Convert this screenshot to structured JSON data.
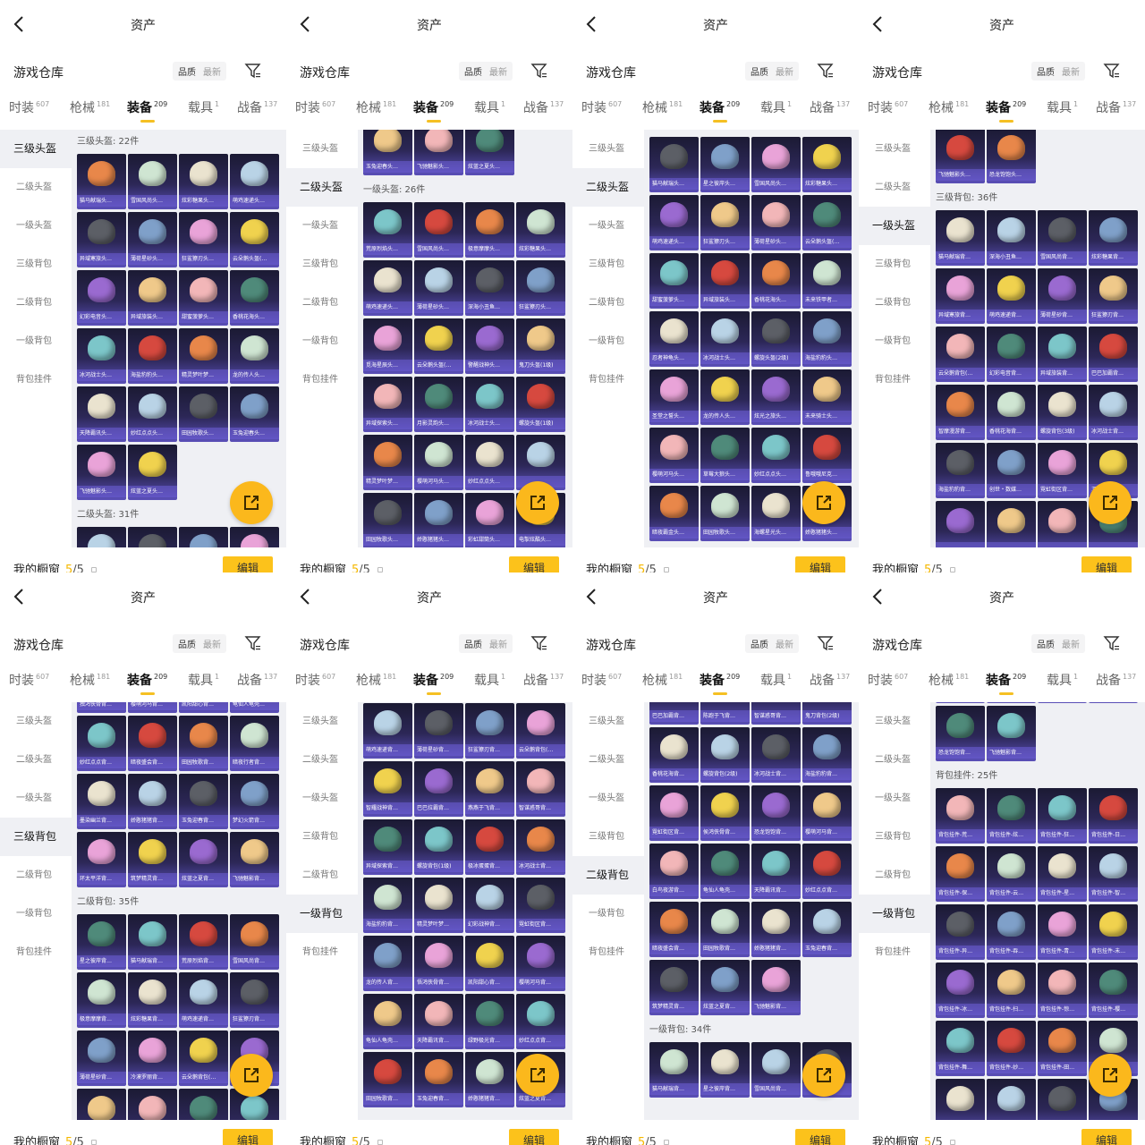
{
  "header": {
    "title": "资产",
    "back_icon": "chevron-left-icon"
  },
  "toolbar": {
    "warehouse_title": "游戏仓库",
    "sort_quality": "品质",
    "sort_newest": "最新",
    "filter_icon": "filter-icon"
  },
  "tabs": [
    {
      "label": "时装",
      "count": "607"
    },
    {
      "label": "枪械",
      "count": "181"
    },
    {
      "label": "装备",
      "count": "209",
      "active": true
    },
    {
      "label": "载具",
      "count": "1"
    },
    {
      "label": "战备",
      "count": "137"
    }
  ],
  "sidebar": [
    "三级头盔",
    "二级头盔",
    "一级头盔",
    "三级背包",
    "二级背包",
    "一级背包",
    "背包挂件"
  ],
  "footer": {
    "label": "我的橱窗",
    "used": "5",
    "total": "/5",
    "edit_label": "编辑",
    "lock_icon": "lock-icon"
  },
  "fab": {
    "icon": "share-icon"
  },
  "colors": {
    "accent": "#fcc21b",
    "tile_top": "#1b1a33",
    "tile_bottom": "#5a4fb8",
    "content_bg": "#eff0f4"
  },
  "panels": [
    {
      "selected": 0,
      "sections": [
        {
          "title": "三级头盔: 22件",
          "items": [
            "猫马献瑞头…",
            "雪国风尚头…",
            "炫彩糖果头…",
            "萌鸡速递头…",
            "异域寒旅头…",
            "薄荷星砂头…",
            "狂鲨獠刃头…",
            "云朵鹅头盔(…",
            "幻彩电音头…",
            "异域旅装头…",
            "甜蜜菠萝头…",
            "香桃花海头…",
            "冰河战士头…",
            "海盐豹豹头…",
            "精灵梦叶梦…",
            "龙的传人头…",
            "天降霸讯头…",
            "妙红点点头…",
            "田园牧歌头…",
            "玉兔迎春头…",
            "飞驰魅影头…",
            "炫蓝之夏头…"
          ]
        },
        {
          "title": "二级头盔: 31件",
          "items": [
            "",
            "",
            "",
            ""
          ]
        }
      ]
    },
    {
      "selected": 1,
      "sections": [
        {
          "title": null,
          "items": [
            "玉兔迎春头…",
            "飞驰魅影头…",
            "炫蓝之夏头…"
          ]
        },
        {
          "title": "一级头盔: 26件",
          "items": [
            "荒原烈焰头…",
            "雪国风尚头…",
            "极意摩摩头…",
            "炫彩糖果头…",
            "萌鸡速递头…",
            "薄荷星砂头…",
            "深海小丑鱼…",
            "狂鲨獠刃头…",
            "觅海星辰头…",
            "云朵鹅头盔(…",
            "警醒战神头…",
            "鬼刀头盔(1级)",
            "异域探索头…",
            "月影灵韵头…",
            "冰河战士头…",
            "螺旋头盔(1级)",
            "精灵梦叶梦…",
            "樱萌河马头…",
            "妙红点点头…",
            "",
            "田园牧歌头…",
            "娇憨猪猪头…",
            "彩虹甜筒头…",
            "电掣炫酷头…"
          ]
        }
      ]
    },
    {
      "selected": 1,
      "sections": [
        {
          "title": null,
          "items": [
            "猫马献瑞头…",
            "星之彼岸头…",
            "雪国风尚头…",
            "炫彩糖果头…",
            "萌鸡速递头…",
            "狂鲨獠刃头…",
            "薄荷星砂头…",
            "云朵鹅头盔(…",
            "甜蜜菠萝头…",
            "异域旅装头…",
            "香桃花海头…",
            "未来铁甲者…",
            "忍者神龟头…",
            "冰河战士头…",
            "螺旋头盔(2级)",
            "海盐豹豹头…",
            "圣堂之誓头…",
            "龙的传人头…",
            "炫光之旅头…",
            "未来骑士头…",
            "樱萌河马头…",
            "草莓大狼头…",
            "妙红点点头…",
            "鲁哦哦尼克…",
            "暗夜霸金头…",
            "田园牧歌头…",
            "海螺星光头…",
            "娇憨猪猪头…"
          ]
        }
      ]
    },
    {
      "selected": 2,
      "sections": [
        {
          "title": null,
          "items": [
            "飞驰魅影头…",
            "恐龙饱饱头…"
          ]
        },
        {
          "title": "三级背包: 36件",
          "items": [
            "猫马献瑞背…",
            "深海小丑鱼…",
            "雪国风尚背…",
            "炫彩糖果背…",
            "异域寒旅背…",
            "萌鸡速递背…",
            "薄荷星砂背…",
            "狂鲨獠刃背…",
            "云朵鹅背包(…",
            "幻彩电音背…",
            "异域旅装背…",
            "巴巴加霸背…",
            "智摩漫游背…",
            "香桃花海背…",
            "螺旋背包(3级)",
            "冰河战士背…",
            "海盐豹豹背…",
            "创世・数媒…",
            "霓虹街区背…",
            "玉兔迎春背…",
            "",
            "",
            "",
            ""
          ]
        }
      ]
    },
    {
      "selected": 3,
      "sections": [
        {
          "title": null,
          "items": [
            "独鸿侠骨背…",
            "樱萌河马背…",
            "凯阳甜心背…",
            "龟仙人龟壳…",
            "妙红点点背…",
            "暗夜盛会背…",
            "田园牧歌背…",
            "暗夜行者背…",
            "墨染幽兰背…",
            "娇憨猪猪背…",
            "玉兔迎春背…",
            "梦幻火箭背…",
            "环太平洋背…",
            "筑梦精灵背…",
            "炫蓝之夏背…",
            "飞驰魅影背…"
          ]
        },
        {
          "title": "二级背包: 35件",
          "items": [
            "星之彼岸背…",
            "猫马献瑞背…",
            "荒原烈焰背…",
            "雪国风尚背…",
            "极意摩摩背…",
            "炫彩糖果背…",
            "萌鸡速递背…",
            "狂鲨獠刃背…",
            "薄荷星砂背…",
            "冷漠罗丽背…",
            "云朵鹅背包(…",
            "",
            "",
            "",
            "",
            ""
          ]
        }
      ]
    },
    {
      "selected": 5,
      "sections": [
        {
          "title": null,
          "items": [
            "萌鸡速递背…",
            "薄荷星砂背…",
            "狂鲨獠刃背…",
            "云朵鹅背包(…",
            "智耀战神背…",
            "巴巴拉霸背…",
            "燕燕于飞背…",
            "智谋惑哥背…",
            "异域探索背…",
            "螺旋背包(1级)",
            "极冰蛋蛋背…",
            "冰河战士背…",
            "海盐豹豹背…",
            "精灵梦叶梦…",
            "幻彩战神背…",
            "霓虹街区背…",
            "龙的传人背…",
            "悟鸿侠骨背…",
            "凯阳甜心背…",
            "樱萌河马背…",
            "龟仙人龟壳…",
            "天降霸讯背…",
            "绿野极光背…",
            "妙红点点背…",
            "田园牧歌背…",
            "玉兔迎春背…",
            "娇憨猪猪背…",
            "炫蓝之夏背…"
          ]
        }
      ]
    },
    {
      "selected": 4,
      "sections": [
        {
          "title": null,
          "items": [
            "巴巴加霸背…",
            "陈跑于飞背…",
            "智谋惑哥背…",
            "鬼刀背包(2级)",
            "香桃花海背…",
            "螺旋背包(2级)",
            "冰河战士背…",
            "海盐豹豹背…",
            "霓虹街区背…",
            "侯鸿侠骨背…",
            "恐龙饱饱背…",
            "樱萌河马背…",
            "白鸟夜游背…",
            "龟仙人龟壳…",
            "天降霸讯背…",
            "妙红点点背…",
            "暗夜盛会背…",
            "田园牧歌背…",
            "娇憨猪猪背…",
            "玉兔迎春背…",
            "筑梦精灵背…",
            "炫蓝之夏背…",
            "飞驰魅影背…"
          ]
        },
        {
          "title": "一级背包: 34件",
          "items": [
            "猫马献瑞背…",
            "星之彼岸背…",
            "雪国风尚背…",
            ""
          ]
        }
      ]
    },
    {
      "selected": 5,
      "sections": [
        {
          "title": null,
          "items": [
            "",
            "",
            "",
            "",
            "恐龙饱饱背…",
            "飞驰魅影背…"
          ]
        },
        {
          "title": "背包挂件: 25件",
          "items": [
            "背包挂件-荒…",
            "背包挂件-炫…",
            "背包挂件-狂…",
            "背包挂件-日…",
            "背包挂件-保…",
            "背包挂件-云…",
            "背包挂件-星…",
            "背包挂件-智…",
            "背包挂件-异…",
            "背包挂件-吞…",
            "背包挂件-青…",
            "背包挂件-未…",
            "背包挂件-冰…",
            "背包挂件-扫…",
            "背包挂件-惊…",
            "背包挂件-樱…",
            "背包挂件-舞…",
            "背包挂件-妙…",
            "背包挂件-田…",
            "",
            "",
            "",
            "",
            ""
          ]
        }
      ]
    }
  ]
}
